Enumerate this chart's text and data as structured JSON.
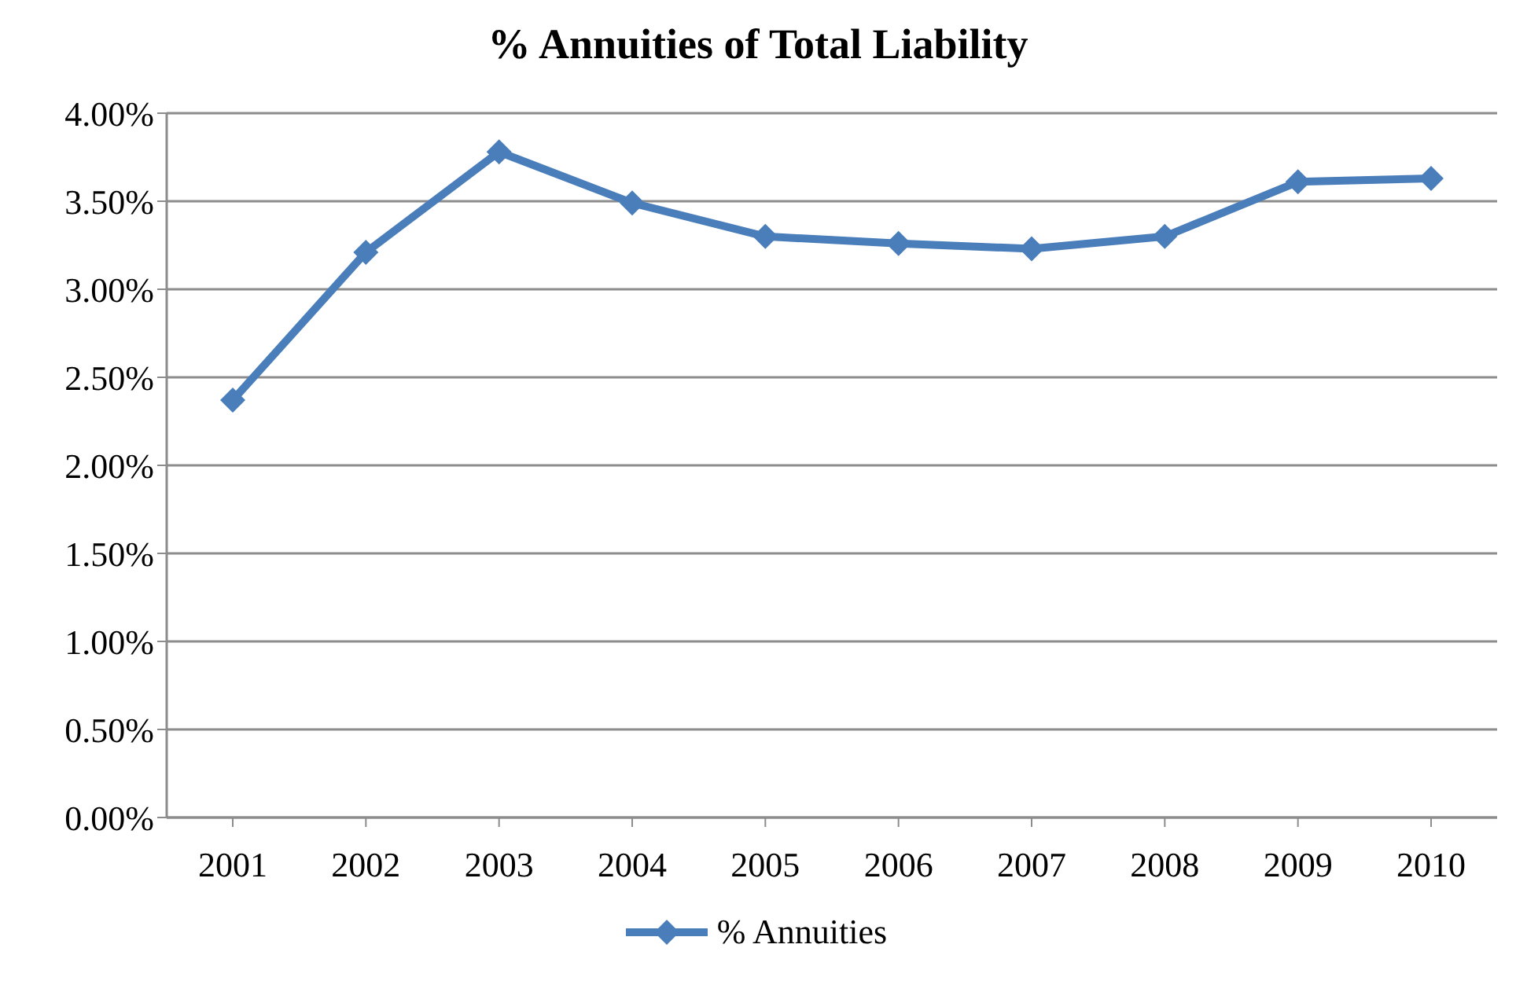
{
  "chart_data": {
    "type": "line",
    "title": "% Annuities of Total Liability",
    "categories": [
      "2001",
      "2002",
      "2003",
      "2004",
      "2005",
      "2006",
      "2007",
      "2008",
      "2009",
      "2010"
    ],
    "series": [
      {
        "name": "% Annuities",
        "color": "#4a7ebb",
        "values": [
          2.37,
          3.21,
          3.78,
          3.49,
          3.3,
          3.26,
          3.23,
          3.3,
          3.61,
          3.63
        ]
      }
    ],
    "ylim": [
      0,
      4
    ],
    "yticks": [
      {
        "value": 0,
        "label": "0.00%"
      },
      {
        "value": 0.5,
        "label": "0.50%"
      },
      {
        "value": 1,
        "label": "1.00%"
      },
      {
        "value": 1.5,
        "label": "1.50%"
      },
      {
        "value": 2,
        "label": "2.00%"
      },
      {
        "value": 2.5,
        "label": "2.50%"
      },
      {
        "value": 3,
        "label": "3.00%"
      },
      {
        "value": 3.5,
        "label": "3.50%"
      },
      {
        "value": 4,
        "label": "4.00%"
      }
    ],
    "grid": "y",
    "legend": "bottom",
    "marker": "diamond",
    "line_style": "solid"
  }
}
